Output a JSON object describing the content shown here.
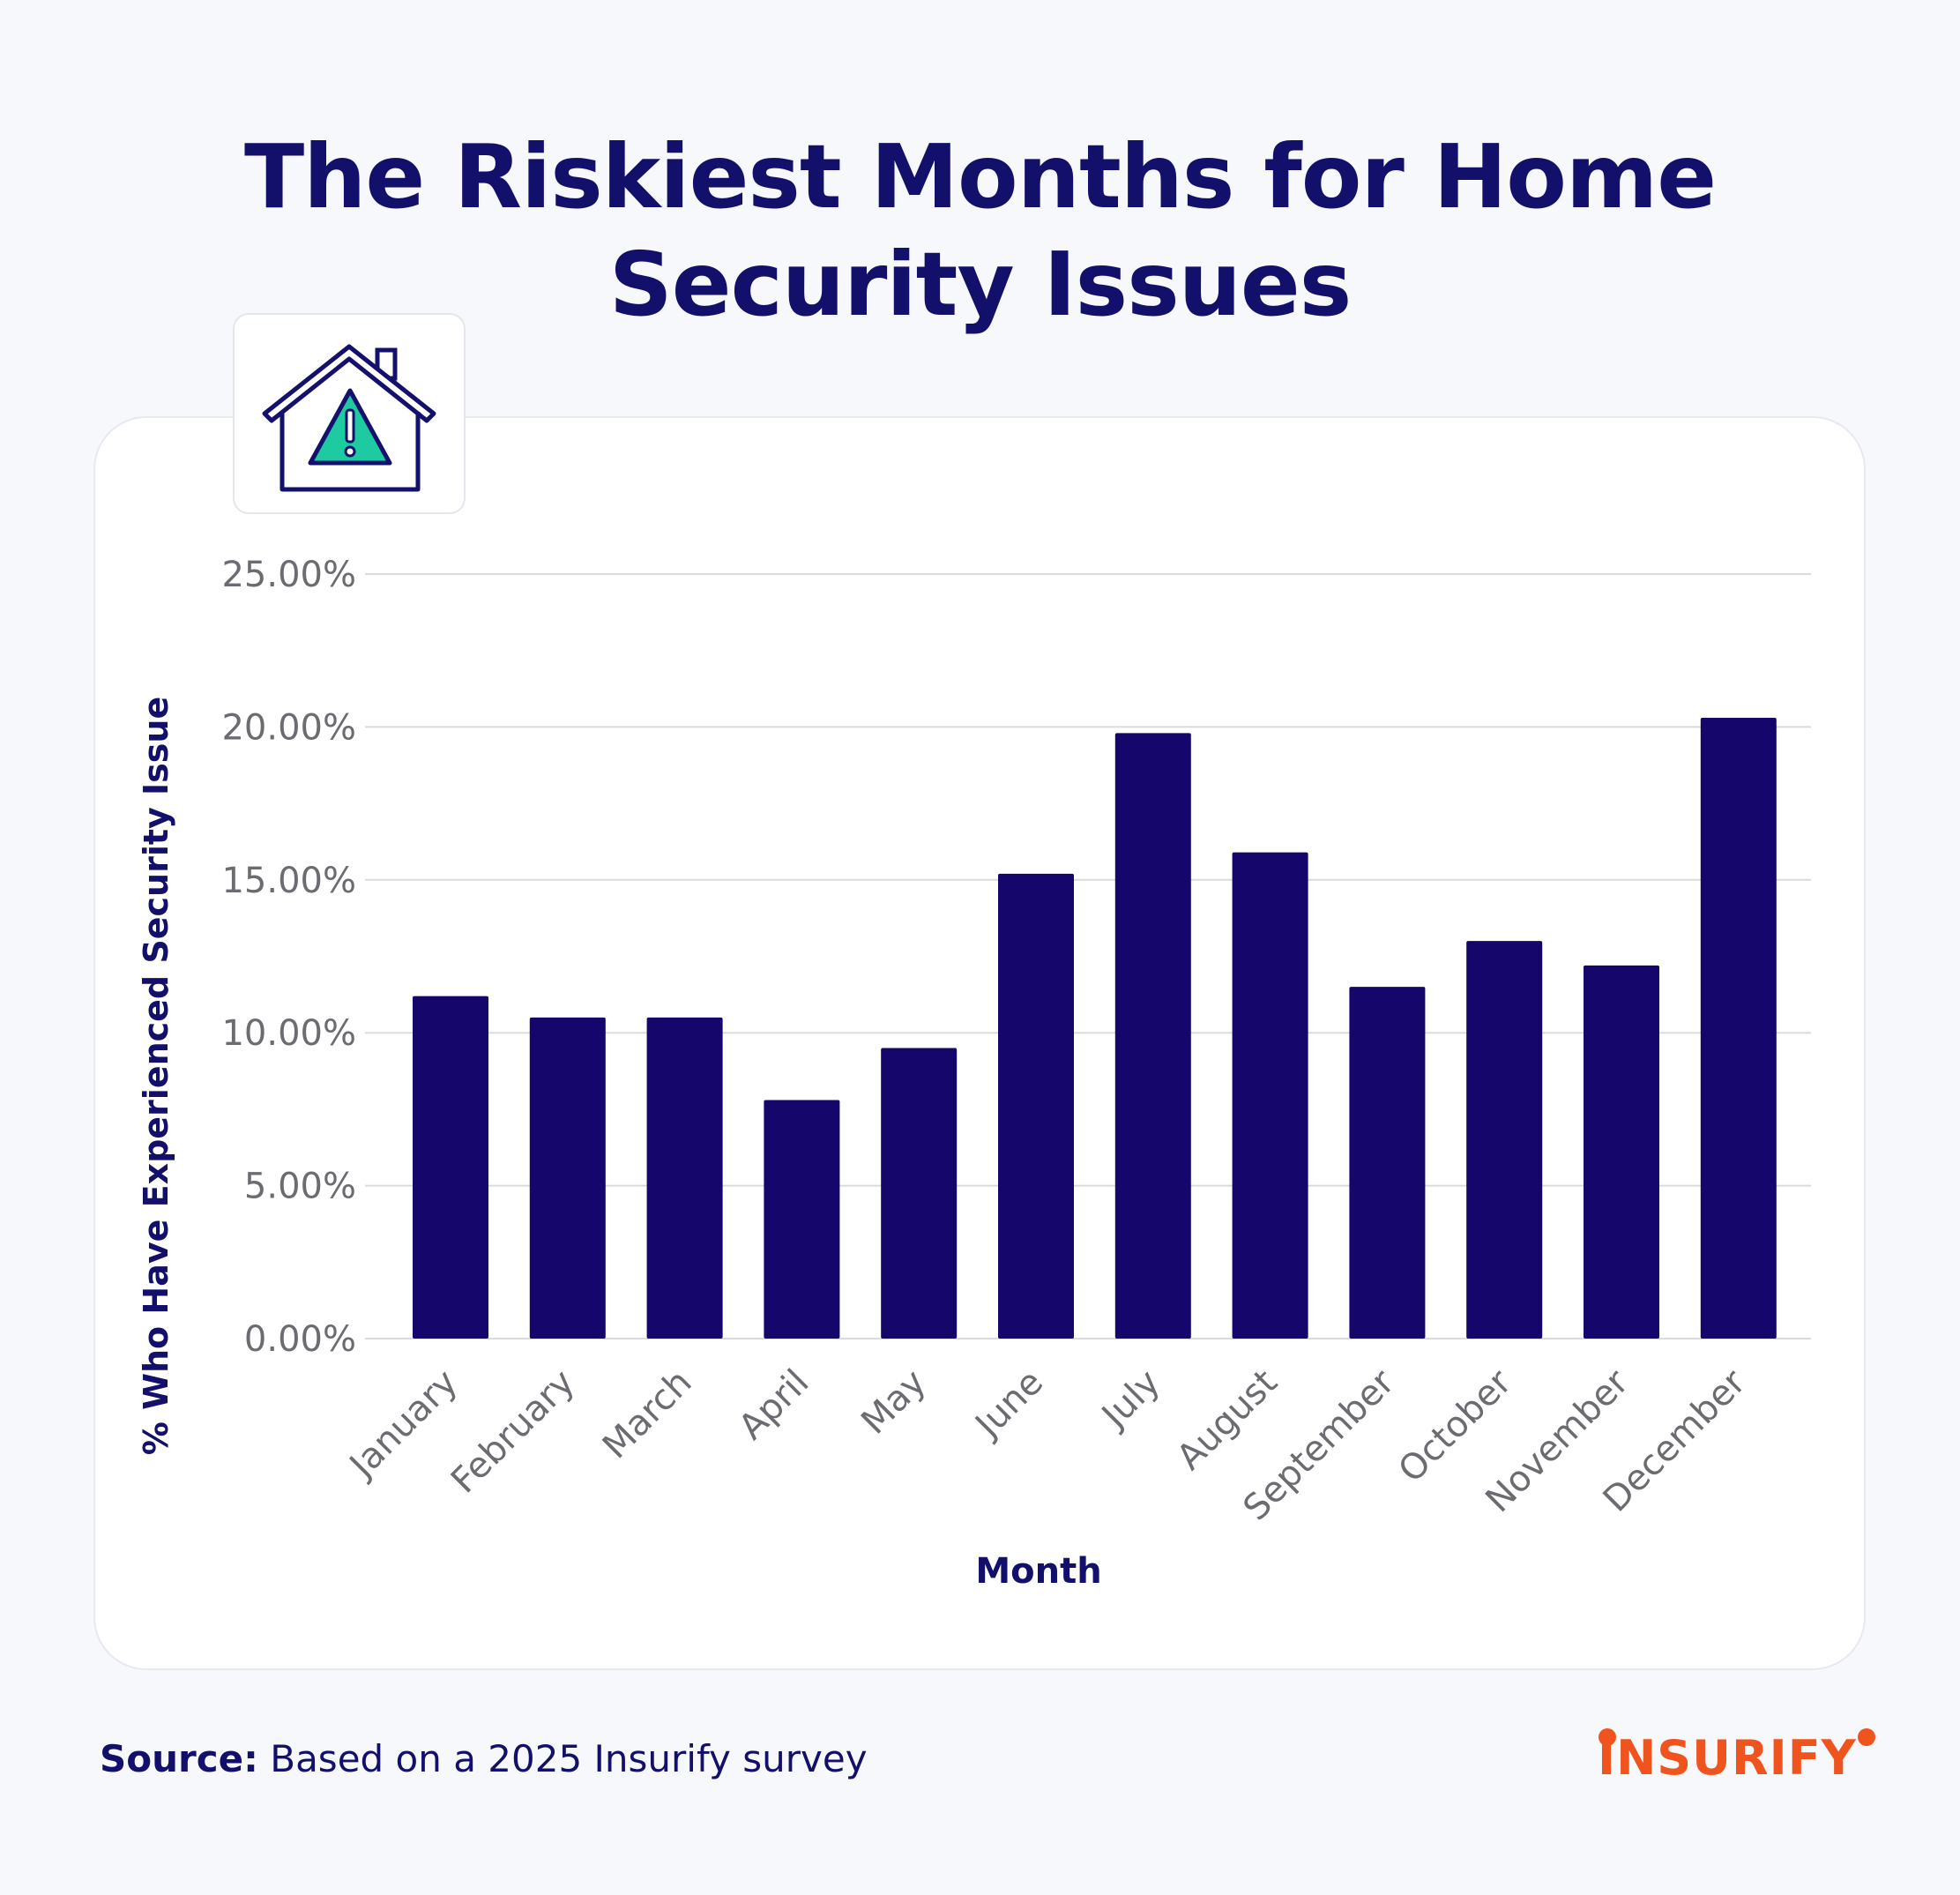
{
  "header": {
    "title_line1": "The Riskiest Months for Home",
    "title_line2": "Security Issues"
  },
  "icons": {
    "badge": "house-warning-icon"
  },
  "chart_data": {
    "type": "bar",
    "categories": [
      "January",
      "February",
      "March",
      "April",
      "May",
      "June",
      "July",
      "August",
      "September",
      "October",
      "November",
      "December"
    ],
    "values": [
      11.2,
      10.5,
      10.5,
      7.8,
      9.5,
      15.2,
      19.8,
      15.9,
      11.5,
      13.0,
      12.2,
      20.3
    ],
    "xlabel": "Month",
    "ylabel": "% Who Have Experienced Security Issue",
    "ylim": [
      0,
      25
    ],
    "yticks": [
      "0.00%",
      "5.00%",
      "10.00%",
      "15.00%",
      "20.00%",
      "25.00%"
    ],
    "grid": true,
    "bar_color": "#14066b"
  },
  "footer": {
    "source_label": "Source:",
    "source_text": " Based on a 2025 Insurify survey",
    "brand": "INSURIFY",
    "brand_color": "#f0541e"
  }
}
